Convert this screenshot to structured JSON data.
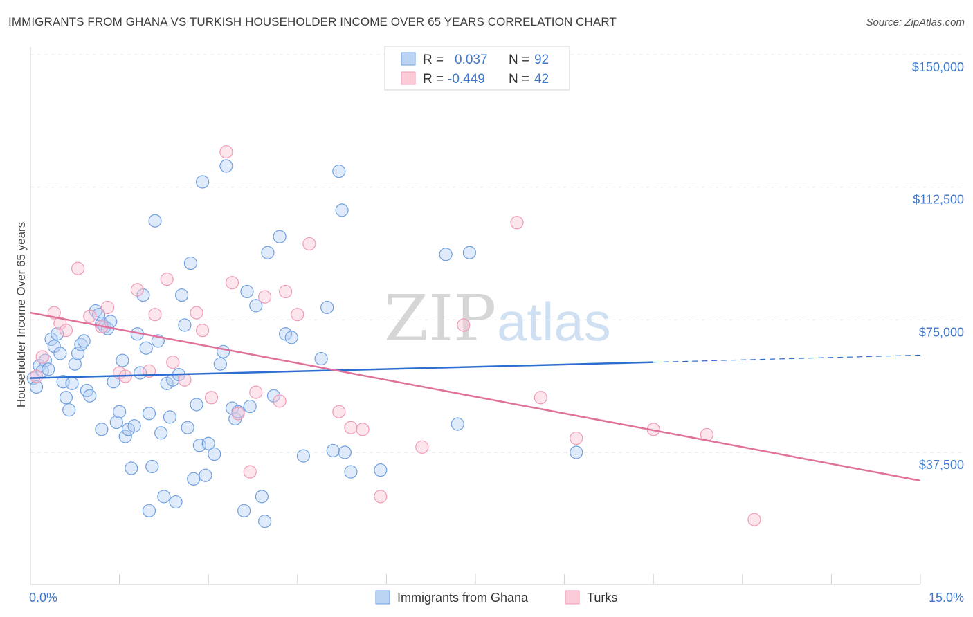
{
  "header": {
    "title": "IMMIGRANTS FROM GHANA VS TURKISH HOUSEHOLDER INCOME OVER 65 YEARS CORRELATION CHART",
    "source": "Source: ZipAtlas.com"
  },
  "watermark": {
    "zip": "ZIP",
    "atlas": "atlas"
  },
  "chart_data": {
    "type": "scatter",
    "title": "IMMIGRANTS FROM GHANA VS TURKISH HOUSEHOLDER INCOME OVER 65 YEARS CORRELATION CHART",
    "ylabel": "Householder Income Over 65 years",
    "xlabel": "",
    "xlim": [
      0,
      15
    ],
    "ylim": [
      0,
      155000
    ],
    "x_tick_labels": [
      "0.0%",
      "15.0%"
    ],
    "y_ticks": [
      37500,
      75000,
      112500,
      150000
    ],
    "y_tick_labels": [
      "$37,500",
      "$75,000",
      "$112,500",
      "$150,000"
    ],
    "grid": true,
    "legend_position": "top-center",
    "colors": {
      "ghana": "#6f9fe0",
      "turks": "#f09ab5",
      "ghana_line": "#2c6fcf",
      "turks_line": "#e0719a",
      "tick": "#3f77c9"
    },
    "stats": [
      {
        "r_label": "R =",
        "r": "0.037",
        "n_label": "N =",
        "n": "92"
      },
      {
        "r_label": "R =",
        "r": "-0.449",
        "n_label": "N =",
        "n": "42"
      }
    ],
    "series": [
      {
        "name": "Immigrants from Ghana",
        "trend": {
          "x": [
            0.0,
            10.5
          ],
          "y": [
            58500,
            63000
          ],
          "dashed_to": [
            15.0,
            65000
          ]
        },
        "points": [
          [
            0.05,
            58500
          ],
          [
            0.1,
            56000
          ],
          [
            0.15,
            62000
          ],
          [
            0.2,
            60500
          ],
          [
            0.25,
            63500
          ],
          [
            0.3,
            61000
          ],
          [
            0.35,
            69500
          ],
          [
            0.4,
            67500
          ],
          [
            0.45,
            71000
          ],
          [
            0.5,
            65500
          ],
          [
            0.55,
            57500
          ],
          [
            0.6,
            53000
          ],
          [
            0.65,
            49500
          ],
          [
            0.7,
            57000
          ],
          [
            0.75,
            62500
          ],
          [
            0.8,
            65500
          ],
          [
            0.85,
            68000
          ],
          [
            0.9,
            69000
          ],
          [
            0.95,
            55000
          ],
          [
            1.0,
            53500
          ],
          [
            1.1,
            77500
          ],
          [
            1.15,
            76500
          ],
          [
            1.2,
            74000
          ],
          [
            1.25,
            73000
          ],
          [
            1.3,
            72500
          ],
          [
            1.35,
            74500
          ],
          [
            1.4,
            57500
          ],
          [
            1.45,
            46000
          ],
          [
            1.5,
            49000
          ],
          [
            1.55,
            63500
          ],
          [
            1.6,
            42000
          ],
          [
            1.65,
            44000
          ],
          [
            1.7,
            33000
          ],
          [
            1.75,
            45000
          ],
          [
            1.8,
            71000
          ],
          [
            1.85,
            60000
          ],
          [
            1.9,
            82000
          ],
          [
            1.95,
            67000
          ],
          [
            2.0,
            48500
          ],
          [
            2.05,
            33500
          ],
          [
            2.1,
            103000
          ],
          [
            2.15,
            69000
          ],
          [
            2.2,
            43000
          ],
          [
            2.25,
            25000
          ],
          [
            2.3,
            57000
          ],
          [
            2.35,
            47500
          ],
          [
            2.4,
            58000
          ],
          [
            2.45,
            23500
          ],
          [
            2.5,
            59500
          ],
          [
            2.55,
            82000
          ],
          [
            2.6,
            73500
          ],
          [
            2.65,
            44500
          ],
          [
            2.7,
            91000
          ],
          [
            2.75,
            30000
          ],
          [
            2.8,
            51000
          ],
          [
            2.85,
            39500
          ],
          [
            2.9,
            114000
          ],
          [
            2.95,
            31000
          ],
          [
            3.0,
            40000
          ],
          [
            3.1,
            37000
          ],
          [
            3.2,
            62500
          ],
          [
            3.25,
            66000
          ],
          [
            3.3,
            118500
          ],
          [
            3.4,
            50000
          ],
          [
            3.45,
            47000
          ],
          [
            3.5,
            49000
          ],
          [
            3.6,
            21000
          ],
          [
            3.65,
            83000
          ],
          [
            3.7,
            50500
          ],
          [
            3.8,
            79000
          ],
          [
            3.9,
            25000
          ],
          [
            3.95,
            18000
          ],
          [
            4.0,
            94000
          ],
          [
            4.1,
            53500
          ],
          [
            4.2,
            98500
          ],
          [
            4.3,
            71000
          ],
          [
            4.4,
            70000
          ],
          [
            4.6,
            36500
          ],
          [
            4.9,
            64000
          ],
          [
            5.0,
            78500
          ],
          [
            5.1,
            38000
          ],
          [
            5.2,
            117000
          ],
          [
            5.25,
            106000
          ],
          [
            5.3,
            37500
          ],
          [
            5.4,
            32000
          ],
          [
            5.9,
            32500
          ],
          [
            7.0,
            93500
          ],
          [
            7.2,
            45500
          ],
          [
            7.4,
            94000
          ],
          [
            9.2,
            37500
          ],
          [
            2.0,
            21000
          ],
          [
            1.2,
            44000
          ]
        ]
      },
      {
        "name": "Turks",
        "trend": {
          "x": [
            0.0,
            15.0
          ],
          "y": [
            77000,
            29500
          ]
        },
        "points": [
          [
            0.1,
            59000
          ],
          [
            0.2,
            64500
          ],
          [
            0.4,
            77000
          ],
          [
            0.5,
            74000
          ],
          [
            0.6,
            72000
          ],
          [
            0.8,
            89500
          ],
          [
            1.0,
            76000
          ],
          [
            1.2,
            73000
          ],
          [
            1.3,
            78500
          ],
          [
            1.5,
            60000
          ],
          [
            1.6,
            59000
          ],
          [
            1.8,
            83500
          ],
          [
            2.0,
            60500
          ],
          [
            2.1,
            76500
          ],
          [
            2.3,
            86500
          ],
          [
            2.4,
            63000
          ],
          [
            2.6,
            58000
          ],
          [
            2.8,
            77000
          ],
          [
            2.9,
            72000
          ],
          [
            3.05,
            53000
          ],
          [
            3.3,
            122500
          ],
          [
            3.4,
            85500
          ],
          [
            3.5,
            48500
          ],
          [
            3.7,
            32000
          ],
          [
            3.8,
            54500
          ],
          [
            3.95,
            81500
          ],
          [
            4.2,
            52000
          ],
          [
            4.3,
            83000
          ],
          [
            4.5,
            76500
          ],
          [
            4.7,
            96500
          ],
          [
            5.2,
            49000
          ],
          [
            5.4,
            44500
          ],
          [
            5.6,
            44000
          ],
          [
            5.9,
            25000
          ],
          [
            6.6,
            39000
          ],
          [
            7.3,
            73500
          ],
          [
            8.2,
            102500
          ],
          [
            8.6,
            53000
          ],
          [
            9.2,
            41500
          ],
          [
            10.5,
            44000
          ],
          [
            11.4,
            42500
          ],
          [
            12.2,
            18500
          ]
        ]
      }
    ]
  },
  "bottom_legend": [
    "Immigrants from Ghana",
    "Turks"
  ]
}
